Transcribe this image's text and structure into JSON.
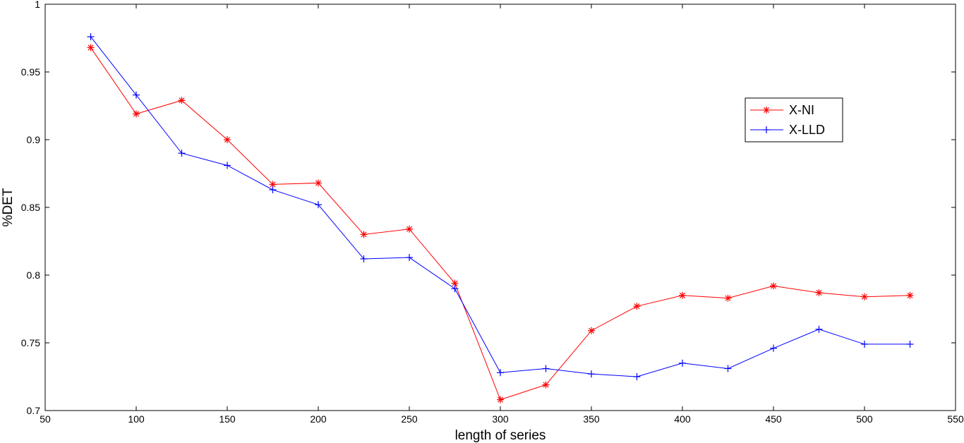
{
  "chart_data": {
    "type": "line",
    "title": "",
    "xlabel": "length of series",
    "ylabel": "%DET",
    "xlim": [
      50,
      550
    ],
    "ylim": [
      0.7,
      1
    ],
    "xticks": [
      50,
      100,
      150,
      200,
      250,
      300,
      350,
      400,
      450,
      500,
      550
    ],
    "yticks": [
      0.7,
      0.75,
      0.8,
      0.85,
      0.9,
      0.95,
      1
    ],
    "ytick_labels": [
      "0.7",
      "0.75",
      "0.8",
      "0.85",
      "0.9",
      "0.95",
      "1"
    ],
    "grid": false,
    "legend_position": "top-right",
    "x": [
      75,
      100,
      125,
      150,
      175,
      200,
      225,
      250,
      275,
      300,
      325,
      350,
      375,
      400,
      425,
      450,
      475,
      500,
      525
    ],
    "series": [
      {
        "name": "X-NI",
        "color": "#ff0000",
        "marker": "asterisk",
        "values": [
          0.968,
          0.919,
          0.929,
          0.9,
          0.867,
          0.868,
          0.83,
          0.834,
          0.794,
          0.708,
          0.719,
          0.759,
          0.777,
          0.785,
          0.783,
          0.792,
          0.787,
          0.784,
          0.785
        ]
      },
      {
        "name": "X-LLD",
        "color": "#0000ff",
        "marker": "plus",
        "values": [
          0.976,
          0.933,
          0.89,
          0.881,
          0.863,
          0.852,
          0.812,
          0.813,
          0.79,
          0.728,
          0.731,
          0.727,
          0.725,
          0.735,
          0.731,
          0.746,
          0.76,
          0.749,
          0.749
        ]
      }
    ]
  }
}
